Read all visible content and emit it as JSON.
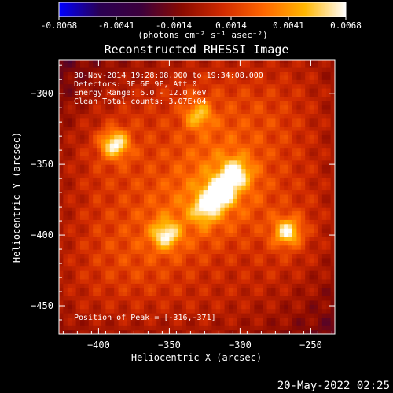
{
  "chart_data": {
    "type": "heatmap",
    "title": "Reconstructed RHESSI Image",
    "xlabel": "Heliocentric X (arcsec)",
    "ylabel": "Heliocentric Y (arcsec)",
    "xlim": [
      -428,
      -233
    ],
    "ylim": [
      -470,
      -276
    ],
    "x_ticks": [
      -400,
      -350,
      -300,
      -250
    ],
    "y_ticks": [
      -300,
      -350,
      -400,
      -450
    ],
    "colorbar": {
      "range": [
        -0.0068,
        0.0068
      ],
      "ticks": [
        "-0.0068",
        "-0.0041",
        "-0.0014",
        "0.0014",
        "0.0041",
        "0.0068"
      ],
      "unit_label": "(photons cm⁻² s⁻¹ asec⁻²)",
      "colormap": [
        "#0000ff",
        "#2a0052",
        "#3c003c",
        "#8a0a00",
        "#d12a00",
        "#ff6600",
        "#ffb600",
        "#ffffff"
      ]
    },
    "annotations": {
      "time_range": "30-Nov-2014 19:28:08.000 to 19:34:08.000",
      "detectors": "Detectors: 3F 6F 9F, Att 0",
      "energy": "Energy Range: 6.0 - 12.0 keV",
      "method": "Clean    Total counts: 3.07E+04",
      "peak": "Position of Peak = [-316,-371]"
    },
    "sources": [
      {
        "x": -316,
        "y": -371,
        "value": 0.0068
      },
      {
        "x": -390,
        "y": -337,
        "value": 0.0062
      },
      {
        "x": -305,
        "y": -358,
        "value": 0.0058
      },
      {
        "x": -268,
        "y": -399,
        "value": 0.006
      },
      {
        "x": -354,
        "y": -401,
        "value": 0.0052
      },
      {
        "x": -326,
        "y": -383,
        "value": 0.0044
      },
      {
        "x": -331,
        "y": -316,
        "value": 0.004
      }
    ]
  },
  "footer": {
    "date": "20-May-2022 02:25"
  }
}
